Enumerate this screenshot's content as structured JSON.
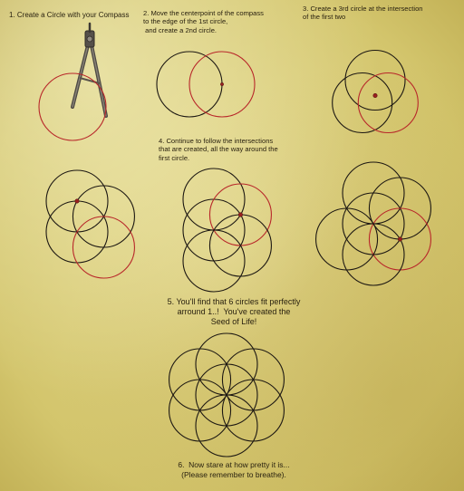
{
  "steps": {
    "step1": "1. Create a Circle with your Compass",
    "step2": "2. Move the centerpoint of the compass\nto the edge of the 1st circle,\n and create a 2nd circle.",
    "step3": "3. Create a 3rd circle at the intersection\nof the first two",
    "step4": "4. Continue to follow the intersections\nthat are created, all the way around the\nfirst circle.",
    "step5": "5. You'll find that 6 circles fit perfectly\narround 1..!  You've created the\nSeed of Life!",
    "step6": "6.  Now stare at how pretty it is...\n(Please remember to breathe)."
  },
  "colors": {
    "line": "#1c1712",
    "highlight": "#b8272a",
    "point": "#9a2020"
  }
}
